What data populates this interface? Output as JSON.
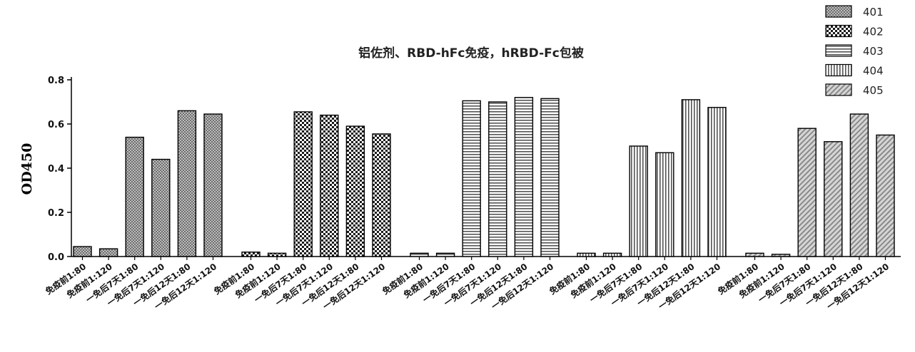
{
  "chart_data": {
    "type": "bar",
    "title": "铝佐剂、RBD-hFc免疫，hRBD-Fc包被",
    "ylabel": "OD450",
    "xlabel": "",
    "ylim": [
      0,
      0.8
    ],
    "yticks": [
      "0.0",
      "0.2",
      "0.4",
      "0.6",
      "0.8"
    ],
    "legend_position": "top-right",
    "categories": [
      "免疫前1:80",
      "免疫前1:120",
      "一免后7天1:80",
      "一免后7天1:120",
      "一免后12天1:80",
      "一免后12天1:120"
    ],
    "series": [
      {
        "name": "401",
        "pattern": "crosshatch",
        "values": [
          0.045,
          0.035,
          0.54,
          0.44,
          0.66,
          0.645
        ]
      },
      {
        "name": "402",
        "pattern": "checker",
        "values": [
          0.02,
          0.015,
          0.655,
          0.64,
          0.59,
          0.555
        ]
      },
      {
        "name": "403",
        "pattern": "horizontal",
        "values": [
          0.015,
          0.015,
          0.705,
          0.7,
          0.72,
          0.715
        ]
      },
      {
        "name": "404",
        "pattern": "vertical",
        "values": [
          0.015,
          0.015,
          0.5,
          0.47,
          0.71,
          0.675
        ]
      },
      {
        "name": "405",
        "pattern": "diagonal",
        "values": [
          0.015,
          0.01,
          0.58,
          0.52,
          0.645,
          0.55
        ]
      }
    ]
  }
}
